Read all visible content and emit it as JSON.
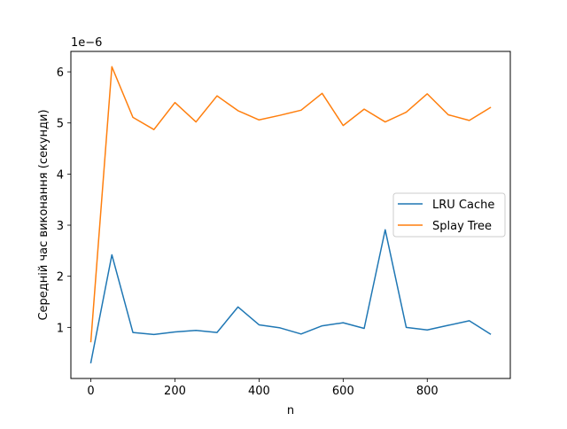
{
  "chart_data": {
    "type": "line",
    "xlabel": "n",
    "ylabel": "Середній час виконання (секунди)",
    "y_offset_label": "1e−6",
    "xlim": [
      -47.5,
      997.5
    ],
    "ylim": [
      0.0,
      6.4
    ],
    "x_ticks": [
      0,
      200,
      400,
      600,
      800
    ],
    "y_ticks": [
      1,
      2,
      3,
      4,
      5,
      6
    ],
    "grid": false,
    "legend_position": "center-right",
    "x": [
      0,
      50,
      100,
      150,
      200,
      250,
      300,
      350,
      400,
      450,
      500,
      550,
      600,
      650,
      700,
      750,
      800,
      850,
      900,
      950
    ],
    "series": [
      {
        "name": "LRU Cache",
        "color": "#1f77b4",
        "values": [
          0.31,
          2.42,
          0.9,
          0.86,
          0.91,
          0.94,
          0.9,
          1.4,
          1.05,
          0.99,
          0.87,
          1.03,
          1.09,
          0.98,
          2.91,
          1.0,
          0.95,
          1.04,
          1.13,
          0.87
        ]
      },
      {
        "name": "Splay Tree",
        "color": "#ff7f0e",
        "values": [
          0.72,
          6.1,
          5.11,
          4.87,
          5.4,
          5.02,
          5.53,
          5.24,
          5.06,
          5.15,
          5.25,
          5.58,
          4.95,
          5.27,
          5.02,
          5.21,
          5.57,
          5.16,
          5.05,
          5.3
        ]
      }
    ]
  }
}
